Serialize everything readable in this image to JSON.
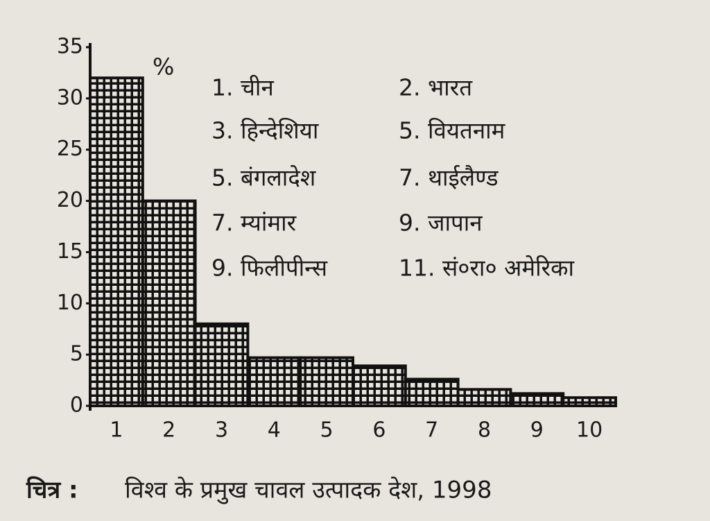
{
  "chart_data": {
    "type": "bar",
    "y_unit_label": "%",
    "categories": [
      "1",
      "2",
      "3",
      "4",
      "5",
      "6",
      "7",
      "8",
      "9",
      "10"
    ],
    "values": [
      32,
      20,
      8,
      4.7,
      4.7,
      3.9,
      2.6,
      1.6,
      1.2,
      0.8
    ],
    "color": "#111111",
    "ylim": [
      0,
      35
    ],
    "yticks": [
      0,
      5,
      10,
      15,
      20,
      25,
      30,
      35
    ],
    "grid": false,
    "legend_items": [
      "1. चीन",
      "2. भारत",
      "3. हिन्देशिया",
      "5. वियतनाम",
      "5. बंगलादेश",
      "7. थाईलैण्ड",
      "7. म्यांमार",
      "9. जापान",
      "9. फिलीपीन्स",
      "11. सं०रा० अमेरिका"
    ],
    "caption_label": "चित्र :",
    "caption": "विश्व के प्रमुख चावल उत्पादक देश, 1998"
  }
}
